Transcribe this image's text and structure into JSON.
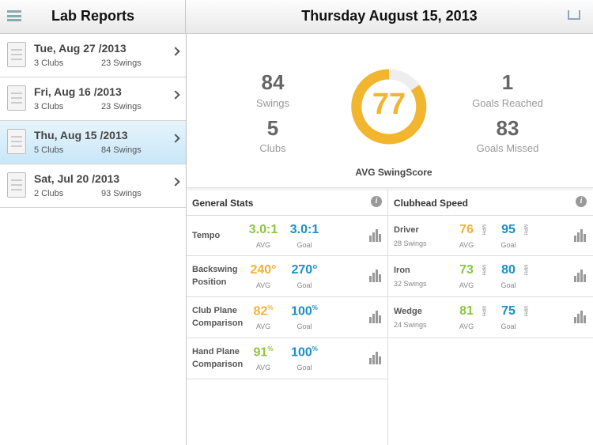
{
  "sidebar": {
    "title": "Lab Reports",
    "reports": [
      {
        "date": "Tue, Aug 27 /2013",
        "clubs": "3 Clubs",
        "swings": "23 Swings"
      },
      {
        "date": "Fri, Aug 16 /2013",
        "clubs": "3 Clubs",
        "swings": "23 Swings"
      },
      {
        "date": "Thu, Aug 15 /2013",
        "clubs": "5 Clubs",
        "swings": "84 Swings",
        "selected": true
      },
      {
        "date": "Sat, Jul 20 /2013",
        "clubs": "2 Clubs",
        "swings": "93 Swings"
      }
    ]
  },
  "header": {
    "title": "Thursday August 15, 2013"
  },
  "summary": {
    "swings": {
      "value": "84",
      "label": "Swings"
    },
    "clubs": {
      "value": "5",
      "label": "Clubs"
    },
    "score": {
      "value": "77",
      "label": "AVG SwingScore"
    },
    "goals_reached": {
      "value": "1",
      "label": "Goals Reached"
    },
    "goals_missed": {
      "value": "83",
      "label": "Goals Missed"
    }
  },
  "general_stats": {
    "title": "General Stats",
    "rows": [
      {
        "label": "Tempo",
        "avg": "3.0:1",
        "avg_unit": "",
        "avg_color": "#8cc63f",
        "avg_label": "AVG",
        "goal": "3.0:1",
        "goal_unit": "",
        "goal_label": "Goal"
      },
      {
        "label": "Backswing Position",
        "avg": "240°",
        "avg_unit": "",
        "avg_color": "#f2b134",
        "avg_label": "AVG",
        "goal": "270°",
        "goal_unit": "",
        "goal_label": "Goal"
      },
      {
        "label": "Club Plane Comparison",
        "avg": "82",
        "avg_unit": "%",
        "avg_color": "#f2b134",
        "avg_label": "AVG",
        "goal": "100",
        "goal_unit": "%",
        "goal_label": "Goal"
      },
      {
        "label": "Hand Plane Comparison",
        "avg": "91",
        "avg_unit": "%",
        "avg_color": "#8cc63f",
        "avg_label": "AVG",
        "goal": "100",
        "goal_unit": "%",
        "goal_label": "Goal"
      }
    ]
  },
  "clubhead_speed": {
    "title": "Clubhead Speed",
    "rows": [
      {
        "label": "Driver",
        "sub": "28 Swings",
        "avg": "76",
        "avg_unit": "MPH",
        "avg_color": "#f2b134",
        "avg_label": "AVG",
        "goal": "95",
        "goal_unit": "MPH",
        "goal_label": "Goal"
      },
      {
        "label": "Iron",
        "sub": "32 Swings",
        "avg": "73",
        "avg_unit": "MPH",
        "avg_color": "#8cc63f",
        "avg_label": "AVG",
        "goal": "80",
        "goal_unit": "MPH",
        "goal_label": "Goal"
      },
      {
        "label": "Wedge",
        "sub": "24 Swings",
        "avg": "81",
        "avg_unit": "MPH",
        "avg_color": "#8cc63f",
        "avg_label": "AVG",
        "goal": "75",
        "goal_unit": "MPH",
        "goal_label": "Goal"
      }
    ]
  }
}
